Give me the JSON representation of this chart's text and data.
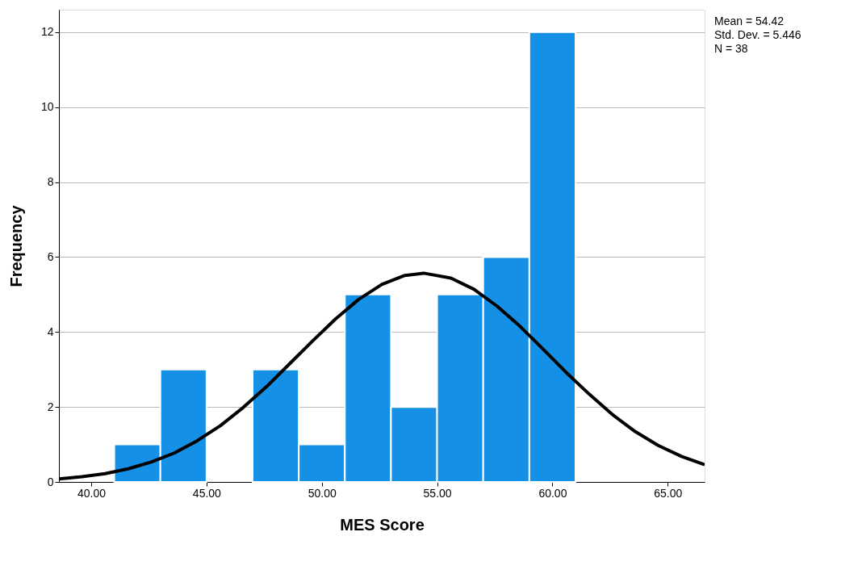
{
  "chart_data": {
    "type": "histogram",
    "xlabel": "MES Score",
    "ylabel": "Frequency",
    "bins": [
      41,
      43,
      45,
      47,
      49,
      51,
      53,
      55,
      57,
      59,
      61
    ],
    "values": [
      1,
      3,
      0,
      3,
      1,
      5,
      2,
      5,
      6,
      12
    ],
    "color": "#1490e6",
    "series": [
      {
        "type": "line",
        "color": "#000000",
        "x": [
          38.6,
          39.6,
          40.6,
          41.6,
          42.6,
          43.6,
          44.6,
          45.6,
          46.6,
          47.6,
          48.6,
          49.6,
          50.6,
          51.6,
          52.6,
          53.6,
          54.42,
          55.6,
          56.6,
          57.6,
          58.6,
          59.6,
          60.6,
          61.6,
          62.6,
          63.6,
          64.6,
          65.6,
          66.6
        ],
        "values": [
          0.08,
          0.14,
          0.22,
          0.35,
          0.53,
          0.77,
          1.1,
          1.5,
          1.99,
          2.54,
          3.15,
          3.76,
          4.35,
          4.87,
          5.27,
          5.51,
          5.57,
          5.44,
          5.14,
          4.69,
          4.15,
          3.54,
          2.92,
          2.34,
          1.8,
          1.34,
          0.97,
          0.68,
          0.46
        ]
      }
    ],
    "xlim": [
      38.6,
      66.6
    ],
    "xticks": [
      {
        "value": 40,
        "label": "40.00"
      },
      {
        "value": 45,
        "label": "45.00"
      },
      {
        "value": 50,
        "label": "50.00"
      },
      {
        "value": 55,
        "label": "55.00"
      },
      {
        "value": 60,
        "label": "60.00"
      },
      {
        "value": 65,
        "label": "65.00"
      }
    ],
    "ylim": [
      0,
      12.6
    ],
    "yticks": [
      0,
      2,
      4,
      6,
      8,
      10,
      12
    ],
    "grid": "y",
    "annotations": [
      "Mean = 54.42",
      "Std. Dev. = 5.446",
      "N = 38"
    ]
  }
}
